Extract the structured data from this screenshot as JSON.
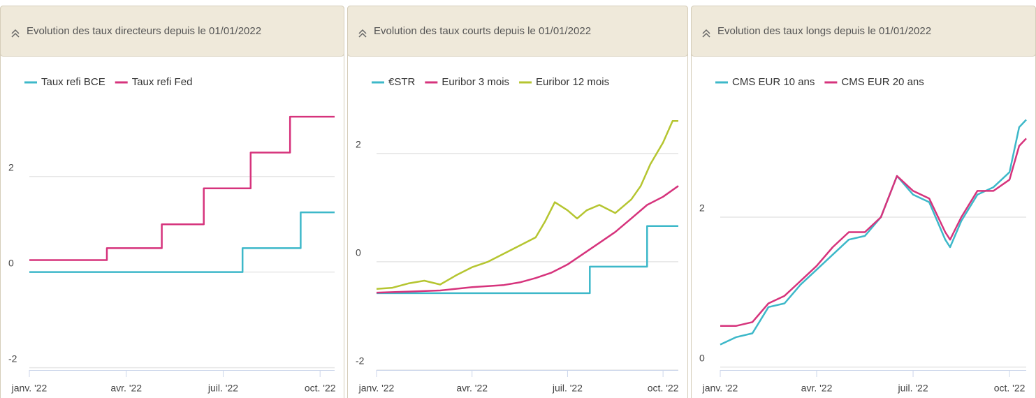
{
  "chart_data": [
    {
      "type": "line",
      "title": "Evolution des taux directeurs depuis le 01/01/2022",
      "xlim": [
        0,
        9.45
      ],
      "xticks": [
        {
          "value": 0,
          "label": "janv. '22"
        },
        {
          "value": 3,
          "label": "avr. '22"
        },
        {
          "value": 6,
          "label": "juil. '22"
        },
        {
          "value": 9,
          "label": "oct. '22"
        }
      ],
      "ylim": [
        -2.05,
        3.5
      ],
      "yticks": [
        -2,
        0,
        2
      ],
      "grid": true,
      "legend": "top-left",
      "series": [
        {
          "name": "Taux refi BCE",
          "color": "#3db8c9",
          "x": [
            0,
            6.6,
            6.6,
            8.4,
            8.4,
            9.45
          ],
          "values": [
            0,
            0,
            0.5,
            0.5,
            1.25,
            1.25
          ]
        },
        {
          "name": "Taux refi Fed",
          "color": "#d6337c",
          "x": [
            0,
            2.4,
            2.4,
            4.1,
            4.1,
            5.4,
            5.4,
            6.85,
            6.85,
            8.07,
            8.07,
            9.45
          ],
          "values": [
            0.25,
            0.25,
            0.5,
            0.5,
            1,
            1,
            1.75,
            1.75,
            2.5,
            2.5,
            3.25,
            3.25
          ]
        }
      ]
    },
    {
      "type": "line",
      "title": "Evolution des taux courts depuis le 01/01/2022",
      "xlim": [
        0,
        9.48
      ],
      "xticks": [
        {
          "value": 0,
          "label": "janv. '22"
        },
        {
          "value": 3,
          "label": "avr. '22"
        },
        {
          "value": 6,
          "label": "juil. '22"
        },
        {
          "value": 9,
          "label": "oct. '22"
        }
      ],
      "ylim": [
        -2,
        2.9
      ],
      "yticks": [
        -2,
        0,
        2
      ],
      "grid": true,
      "legend": "top-left",
      "series": [
        {
          "name": "€STR",
          "color": "#3db8c9",
          "x": [
            0,
            6.7,
            6.7,
            8.5,
            8.5,
            9.48
          ],
          "values": [
            -0.58,
            -0.58,
            -0.09,
            -0.09,
            0.66,
            0.66
          ]
        },
        {
          "name": "Euribor 3 mois",
          "color": "#d6337c",
          "x": [
            0,
            1,
            2,
            3,
            4,
            4.5,
            5,
            5.5,
            6,
            6.5,
            7,
            7.5,
            8,
            8.5,
            9,
            9.48
          ],
          "values": [
            -0.57,
            -0.55,
            -0.53,
            -0.47,
            -0.43,
            -0.38,
            -0.3,
            -0.2,
            -0.05,
            0.15,
            0.35,
            0.55,
            0.8,
            1.05,
            1.2,
            1.4
          ]
        },
        {
          "name": "Euribor 12 mois",
          "color": "#b5c530",
          "x": [
            0,
            0.5,
            1,
            1.5,
            2,
            2.5,
            3,
            3.5,
            4,
            4.5,
            5,
            5.3,
            5.6,
            6,
            6.3,
            6.6,
            7,
            7.5,
            8,
            8.3,
            8.6,
            9,
            9.3,
            9.48
          ],
          "values": [
            -0.5,
            -0.48,
            -0.4,
            -0.35,
            -0.42,
            -0.25,
            -0.1,
            0,
            0.15,
            0.3,
            0.45,
            0.75,
            1.1,
            0.95,
            0.8,
            0.95,
            1.05,
            0.9,
            1.15,
            1.4,
            1.8,
            2.2,
            2.6,
            2.6
          ]
        }
      ]
    },
    {
      "type": "line",
      "title": "Evolution des taux longs depuis le 01/01/2022",
      "xlim": [
        0,
        9.52
      ],
      "xticks": [
        {
          "value": 0,
          "label": "janv. '22"
        },
        {
          "value": 3,
          "label": "avr. '22"
        },
        {
          "value": 6,
          "label": "juil. '22"
        },
        {
          "value": 9,
          "label": "oct. '22"
        }
      ],
      "ylim": [
        -0.04,
        3.5
      ],
      "yticks": [
        0,
        2
      ],
      "grid": true,
      "legend": "top-left",
      "series": [
        {
          "name": "CMS EUR 10 ans",
          "color": "#3db8c9",
          "x": [
            0,
            0.5,
            1,
            1.5,
            2,
            2.5,
            3,
            3.5,
            4,
            4.5,
            5,
            5.5,
            6,
            6.5,
            7,
            7.15,
            7.5,
            8,
            8.5,
            9,
            9.3,
            9.52
          ],
          "values": [
            0.3,
            0.4,
            0.45,
            0.8,
            0.85,
            1.1,
            1.3,
            1.5,
            1.7,
            1.75,
            2.0,
            2.55,
            2.3,
            2.2,
            1.7,
            1.6,
            1.95,
            2.3,
            2.4,
            2.6,
            3.2,
            3.3
          ]
        },
        {
          "name": "CMS EUR 20 ans",
          "color": "#d6337c",
          "x": [
            0,
            0.5,
            1,
            1.5,
            2,
            2.5,
            3,
            3.5,
            4,
            4.5,
            5,
            5.5,
            6,
            6.5,
            7,
            7.15,
            7.5,
            8,
            8.5,
            9,
            9.3,
            9.52
          ],
          "values": [
            0.55,
            0.55,
            0.6,
            0.85,
            0.95,
            1.15,
            1.35,
            1.6,
            1.8,
            1.8,
            2.0,
            2.55,
            2.35,
            2.25,
            1.8,
            1.7,
            2.0,
            2.35,
            2.35,
            2.5,
            2.95,
            3.05
          ]
        }
      ]
    }
  ]
}
